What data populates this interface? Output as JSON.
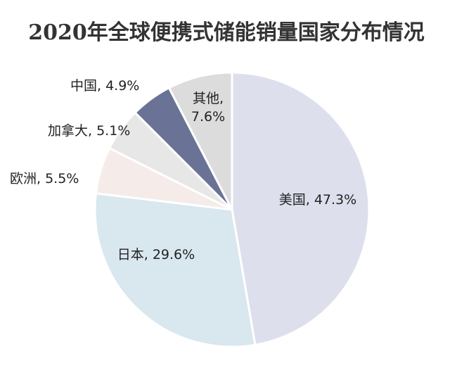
{
  "chart_data": {
    "type": "pie",
    "title": "2020年全球便携式储能销量国家分布情况",
    "slices": [
      {
        "name": "美国",
        "label": "美国, 47.3%",
        "value": 47.3,
        "color": "#dde0ec"
      },
      {
        "name": "日本",
        "label": "日本, 29.6%",
        "value": 29.6,
        "color": "#d9e7ef"
      },
      {
        "name": "欧洲",
        "label": "欧洲, 5.5%",
        "value": 5.5,
        "color": "#f5ecea"
      },
      {
        "name": "加拿大",
        "label": "加拿大, 5.1%",
        "value": 5.1,
        "color": "#e7e7e7"
      },
      {
        "name": "中国",
        "label": "中国, 4.9%",
        "value": 4.9,
        "color": "#6a7396"
      },
      {
        "name": "其他",
        "label_lines": [
          "其他,",
          "7.6%"
        ],
        "value": 7.6,
        "color": "#dcdcdc"
      }
    ]
  }
}
